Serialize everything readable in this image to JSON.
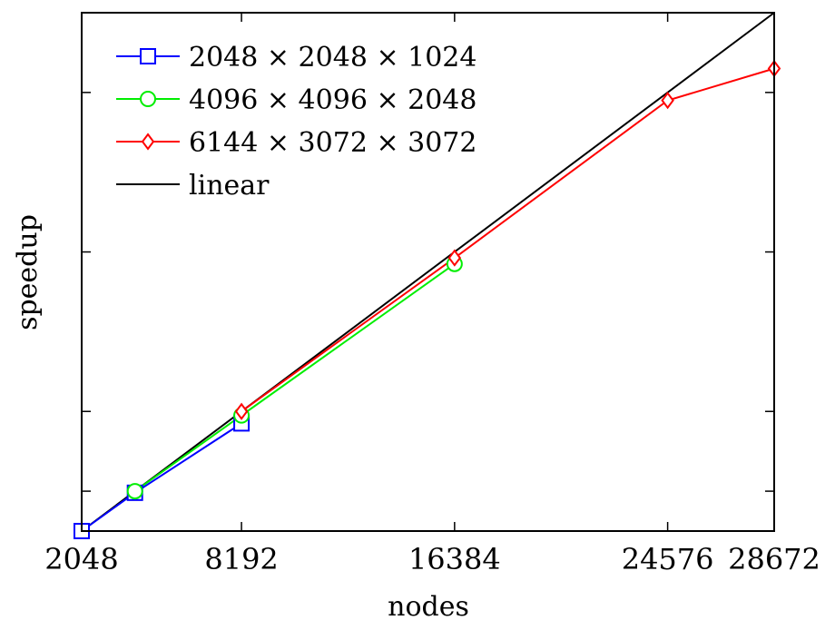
{
  "chart_data": {
    "type": "line",
    "title": "",
    "xlabel": "nodes",
    "ylabel": "speedup",
    "x_ticks": [
      2048,
      8192,
      16384,
      24576,
      28672
    ],
    "xlim": [
      2048,
      28672
    ],
    "ylim": [
      1,
      14
    ],
    "y_tick_labels_shown": false,
    "y_ticks": [
      2,
      4,
      8,
      12
    ],
    "grid": false,
    "legend_position": "top-left",
    "series": [
      {
        "name": "2048 × 2048 × 1024",
        "color": "#0000ff",
        "marker": "square",
        "x": [
          2048,
          4096,
          8192
        ],
        "y": [
          1,
          1.96,
          3.7
        ]
      },
      {
        "name": "4096 × 4096 × 2048",
        "color": "#00ee00",
        "marker": "circle",
        "x": [
          4096,
          8192,
          16384
        ],
        "y": [
          2,
          3.9,
          7.7
        ]
      },
      {
        "name": "6144 × 3072 × 3072",
        "color": "#ff0000",
        "marker": "diamond",
        "x": [
          8192,
          16384,
          24576,
          28672
        ],
        "y": [
          4,
          7.85,
          11.8,
          12.6
        ]
      },
      {
        "name": "linear",
        "color": "#000000",
        "marker": "none",
        "x": [
          2048,
          28672
        ],
        "y": [
          1,
          14
        ]
      }
    ]
  }
}
